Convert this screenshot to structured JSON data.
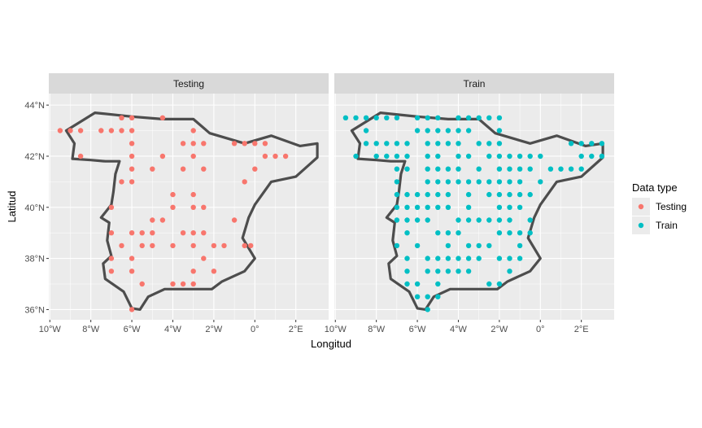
{
  "chart_data": {
    "type": "scatter",
    "xlabel": "Longitud",
    "ylabel": "Latitud",
    "xlim": [
      -10.05,
      3.6
    ],
    "ylim": [
      35.6,
      44.45
    ],
    "x_ticks": [
      {
        "value": -10,
        "label": "10°W"
      },
      {
        "value": -8,
        "label": "8°W"
      },
      {
        "value": -6,
        "label": "6°W"
      },
      {
        "value": -4,
        "label": "4°W"
      },
      {
        "value": -2,
        "label": "2°W"
      },
      {
        "value": 0,
        "label": "0°"
      },
      {
        "value": 2,
        "label": "2°E"
      }
    ],
    "y_ticks": [
      {
        "value": 36,
        "label": "36°N"
      },
      {
        "value": 38,
        "label": "38°N"
      },
      {
        "value": 40,
        "label": "40°N"
      },
      {
        "value": 42,
        "label": "42°N"
      },
      {
        "value": 44,
        "label": "44°N"
      }
    ],
    "grid": true,
    "legend": {
      "title": "Data type",
      "position": "right",
      "items": [
        {
          "label": "Testing",
          "color": "#F8766D"
        },
        {
          "label": "Train",
          "color": "#00BFC4"
        }
      ]
    },
    "colors": {
      "panel_bg": "#EBEBEB",
      "strip_bg": "#D9D9D9",
      "grid_major": "#FFFFFF",
      "outline": "#4D4D4D",
      "testing": "#F8766D",
      "train": "#00BFC4"
    },
    "outline": [
      [
        -9.2,
        43.0
      ],
      [
        -7.8,
        43.7
      ],
      [
        -6.0,
        43.55
      ],
      [
        -4.5,
        43.45
      ],
      [
        -3.0,
        43.45
      ],
      [
        -2.2,
        42.9
      ],
      [
        -0.5,
        42.5
      ],
      [
        0.8,
        42.8
      ],
      [
        2.2,
        42.4
      ],
      [
        3.05,
        42.5
      ],
      [
        3.05,
        41.95
      ],
      [
        2.0,
        41.2
      ],
      [
        0.8,
        41.0
      ],
      [
        0.0,
        40.1
      ],
      [
        -0.3,
        39.6
      ],
      [
        -0.6,
        38.8
      ],
      [
        0.0,
        38.0
      ],
      [
        -0.5,
        37.5
      ],
      [
        -1.6,
        37.1
      ],
      [
        -2.1,
        36.8
      ],
      [
        -4.4,
        36.8
      ],
      [
        -5.2,
        36.5
      ],
      [
        -5.6,
        36.0
      ],
      [
        -6.0,
        36.05
      ],
      [
        -6.4,
        36.7
      ],
      [
        -7.3,
        37.2
      ],
      [
        -7.4,
        37.8
      ],
      [
        -7.0,
        38.1
      ],
      [
        -7.2,
        38.7
      ],
      [
        -7.1,
        39.4
      ],
      [
        -7.5,
        39.6
      ],
      [
        -7.0,
        40.1
      ],
      [
        -6.9,
        40.6
      ],
      [
        -6.8,
        41.3
      ],
      [
        -6.6,
        41.8
      ],
      [
        -7.3,
        41.8
      ],
      [
        -8.0,
        41.85
      ],
      [
        -8.9,
        41.9
      ],
      [
        -8.8,
        42.5
      ],
      [
        -9.2,
        43.0
      ]
    ],
    "panels": [
      {
        "strip": "Testing",
        "series": "Testing",
        "points": [
          [
            -9.5,
            43.0
          ],
          [
            -9.0,
            43.0
          ],
          [
            -8.5,
            43.0
          ],
          [
            -7.5,
            43.0
          ],
          [
            -7.0,
            43.0
          ],
          [
            -6.5,
            43.0
          ],
          [
            -6.0,
            43.0
          ],
          [
            -6.5,
            43.5
          ],
          [
            -6.0,
            43.5
          ],
          [
            -4.5,
            43.5
          ],
          [
            -6.0,
            42.5
          ],
          [
            -3.5,
            42.5
          ],
          [
            -3.0,
            42.5
          ],
          [
            -2.5,
            42.5
          ],
          [
            -1.0,
            42.5
          ],
          [
            -0.5,
            42.5
          ],
          [
            0.0,
            42.5
          ],
          [
            0.5,
            42.5
          ],
          [
            -3.0,
            43.0
          ],
          [
            -8.5,
            42.0
          ],
          [
            -6.0,
            42.0
          ],
          [
            -4.5,
            42.0
          ],
          [
            -3.0,
            42.0
          ],
          [
            0.5,
            42.0
          ],
          [
            1.0,
            42.0
          ],
          [
            1.5,
            42.0
          ],
          [
            -6.0,
            41.5
          ],
          [
            -5.0,
            41.5
          ],
          [
            -3.5,
            41.5
          ],
          [
            -2.5,
            41.5
          ],
          [
            0.0,
            41.5
          ],
          [
            -6.5,
            41.0
          ],
          [
            -6.0,
            41.0
          ],
          [
            -0.5,
            41.0
          ],
          [
            -4.0,
            40.5
          ],
          [
            -3.0,
            40.5
          ],
          [
            -7.0,
            40.0
          ],
          [
            -4.0,
            40.0
          ],
          [
            -3.0,
            40.0
          ],
          [
            -2.5,
            40.0
          ],
          [
            -5.0,
            39.5
          ],
          [
            -4.5,
            39.5
          ],
          [
            -1.0,
            39.5
          ],
          [
            -7.0,
            39.0
          ],
          [
            -6.0,
            39.0
          ],
          [
            -5.5,
            39.0
          ],
          [
            -5.0,
            39.0
          ],
          [
            -3.5,
            39.0
          ],
          [
            -3.0,
            39.0
          ],
          [
            -2.5,
            39.0
          ],
          [
            -6.5,
            38.5
          ],
          [
            -5.5,
            38.5
          ],
          [
            -5.0,
            38.5
          ],
          [
            -4.0,
            38.5
          ],
          [
            -3.0,
            38.5
          ],
          [
            -2.0,
            38.5
          ],
          [
            -1.5,
            38.5
          ],
          [
            -0.5,
            38.5
          ],
          [
            -0.2,
            38.5
          ],
          [
            -7.0,
            38.0
          ],
          [
            -6.0,
            38.0
          ],
          [
            -2.5,
            38.0
          ],
          [
            -7.0,
            37.5
          ],
          [
            -6.0,
            37.5
          ],
          [
            -3.0,
            37.5
          ],
          [
            -2.0,
            37.5
          ],
          [
            -5.5,
            37.0
          ],
          [
            -4.0,
            37.0
          ],
          [
            -3.5,
            37.0
          ],
          [
            -3.0,
            37.0
          ],
          [
            -6.0,
            36.0
          ]
        ]
      },
      {
        "strip": "Train",
        "series": "Train",
        "points": [
          [
            -9.5,
            43.5
          ],
          [
            -9.0,
            43.5
          ],
          [
            -8.5,
            43.5
          ],
          [
            -8.0,
            43.5
          ],
          [
            -7.5,
            43.5
          ],
          [
            -7.0,
            43.5
          ],
          [
            -6.0,
            43.5
          ],
          [
            -5.5,
            43.5
          ],
          [
            -5.0,
            43.5
          ],
          [
            -4.0,
            43.5
          ],
          [
            -3.5,
            43.5
          ],
          [
            -3.0,
            43.5
          ],
          [
            -2.5,
            43.5
          ],
          [
            -2.0,
            43.5
          ],
          [
            -8.5,
            43.0
          ],
          [
            -6.0,
            43.0
          ],
          [
            -5.5,
            43.0
          ],
          [
            -5.0,
            43.0
          ],
          [
            -4.5,
            43.0
          ],
          [
            -4.0,
            43.0
          ],
          [
            -3.5,
            43.0
          ],
          [
            -2.0,
            43.0
          ],
          [
            -8.5,
            42.5
          ],
          [
            -8.0,
            42.5
          ],
          [
            -7.5,
            42.5
          ],
          [
            -7.0,
            42.5
          ],
          [
            -6.5,
            42.5
          ],
          [
            -5.5,
            42.5
          ],
          [
            -5.0,
            42.5
          ],
          [
            -4.5,
            42.5
          ],
          [
            -4.0,
            42.5
          ],
          [
            -3.0,
            42.5
          ],
          [
            -2.5,
            42.5
          ],
          [
            -2.0,
            42.5
          ],
          [
            1.5,
            42.5
          ],
          [
            2.0,
            42.5
          ],
          [
            2.5,
            42.5
          ],
          [
            3.0,
            42.5
          ],
          [
            -9.0,
            42.0
          ],
          [
            -8.0,
            42.0
          ],
          [
            -7.5,
            42.0
          ],
          [
            -7.0,
            42.0
          ],
          [
            -6.5,
            42.0
          ],
          [
            -5.5,
            42.0
          ],
          [
            -5.0,
            42.0
          ],
          [
            -4.0,
            42.0
          ],
          [
            -3.5,
            42.0
          ],
          [
            -2.5,
            42.0
          ],
          [
            -2.0,
            42.0
          ],
          [
            -1.5,
            42.0
          ],
          [
            -1.0,
            42.0
          ],
          [
            -0.5,
            42.0
          ],
          [
            0.0,
            42.0
          ],
          [
            2.0,
            42.0
          ],
          [
            2.5,
            42.0
          ],
          [
            3.0,
            42.0
          ],
          [
            -7.0,
            41.5
          ],
          [
            -6.5,
            41.5
          ],
          [
            -5.5,
            41.5
          ],
          [
            -5.0,
            41.5
          ],
          [
            -4.5,
            41.5
          ],
          [
            -4.0,
            41.5
          ],
          [
            -3.0,
            41.5
          ],
          [
            -2.0,
            41.5
          ],
          [
            -1.5,
            41.5
          ],
          [
            -1.0,
            41.5
          ],
          [
            -0.5,
            41.5
          ],
          [
            0.5,
            41.5
          ],
          [
            1.0,
            41.5
          ],
          [
            1.5,
            41.5
          ],
          [
            2.0,
            41.5
          ],
          [
            -7.0,
            41.0
          ],
          [
            -5.5,
            41.0
          ],
          [
            -5.0,
            41.0
          ],
          [
            -4.5,
            41.0
          ],
          [
            -4.0,
            41.0
          ],
          [
            -3.5,
            41.0
          ],
          [
            -3.0,
            41.0
          ],
          [
            -2.5,
            41.0
          ],
          [
            -2.0,
            41.0
          ],
          [
            -1.5,
            41.0
          ],
          [
            -1.0,
            41.0
          ],
          [
            0.0,
            41.0
          ],
          [
            -7.0,
            40.5
          ],
          [
            -6.5,
            40.5
          ],
          [
            -6.0,
            40.5
          ],
          [
            -5.5,
            40.5
          ],
          [
            -5.0,
            40.5
          ],
          [
            -4.5,
            40.5
          ],
          [
            -3.5,
            40.5
          ],
          [
            -2.5,
            40.5
          ],
          [
            -2.0,
            40.5
          ],
          [
            -1.5,
            40.5
          ],
          [
            -1.0,
            40.5
          ],
          [
            -0.5,
            40.5
          ],
          [
            -7.0,
            40.0
          ],
          [
            -6.5,
            40.0
          ],
          [
            -6.0,
            40.0
          ],
          [
            -5.5,
            40.0
          ],
          [
            -5.0,
            40.0
          ],
          [
            -4.5,
            40.0
          ],
          [
            -3.5,
            40.0
          ],
          [
            -2.0,
            40.0
          ],
          [
            -1.5,
            40.0
          ],
          [
            -1.0,
            40.0
          ],
          [
            -7.0,
            39.5
          ],
          [
            -6.5,
            39.5
          ],
          [
            -6.0,
            39.5
          ],
          [
            -5.5,
            39.5
          ],
          [
            -4.0,
            39.5
          ],
          [
            -3.5,
            39.5
          ],
          [
            -3.0,
            39.5
          ],
          [
            -2.5,
            39.5
          ],
          [
            -2.0,
            39.5
          ],
          [
            -1.5,
            39.5
          ],
          [
            -0.5,
            39.5
          ],
          [
            -6.5,
            39.0
          ],
          [
            -5.0,
            39.0
          ],
          [
            -4.5,
            39.0
          ],
          [
            -4.0,
            39.0
          ],
          [
            -2.0,
            39.0
          ],
          [
            -1.5,
            39.0
          ],
          [
            -1.0,
            39.0
          ],
          [
            -0.5,
            39.0
          ],
          [
            -7.0,
            38.5
          ],
          [
            -6.0,
            38.5
          ],
          [
            -4.5,
            38.5
          ],
          [
            -3.5,
            38.5
          ],
          [
            -3.0,
            38.5
          ],
          [
            -2.5,
            38.5
          ],
          [
            -1.0,
            38.5
          ],
          [
            -6.5,
            38.0
          ],
          [
            -5.5,
            38.0
          ],
          [
            -5.0,
            38.0
          ],
          [
            -4.5,
            38.0
          ],
          [
            -4.0,
            38.0
          ],
          [
            -3.5,
            38.0
          ],
          [
            -3.0,
            38.0
          ],
          [
            -2.0,
            38.0
          ],
          [
            -1.5,
            38.0
          ],
          [
            -1.0,
            38.0
          ],
          [
            -6.5,
            37.5
          ],
          [
            -5.5,
            37.5
          ],
          [
            -5.0,
            37.5
          ],
          [
            -4.5,
            37.5
          ],
          [
            -4.0,
            37.5
          ],
          [
            -3.5,
            37.5
          ],
          [
            -1.5,
            37.5
          ],
          [
            -6.5,
            37.0
          ],
          [
            -6.0,
            37.0
          ],
          [
            -5.0,
            37.0
          ],
          [
            -2.5,
            37.0
          ],
          [
            -2.0,
            37.0
          ],
          [
            -6.0,
            36.5
          ],
          [
            -5.5,
            36.5
          ],
          [
            -5.0,
            36.5
          ],
          [
            -5.5,
            36.0
          ]
        ]
      }
    ]
  }
}
